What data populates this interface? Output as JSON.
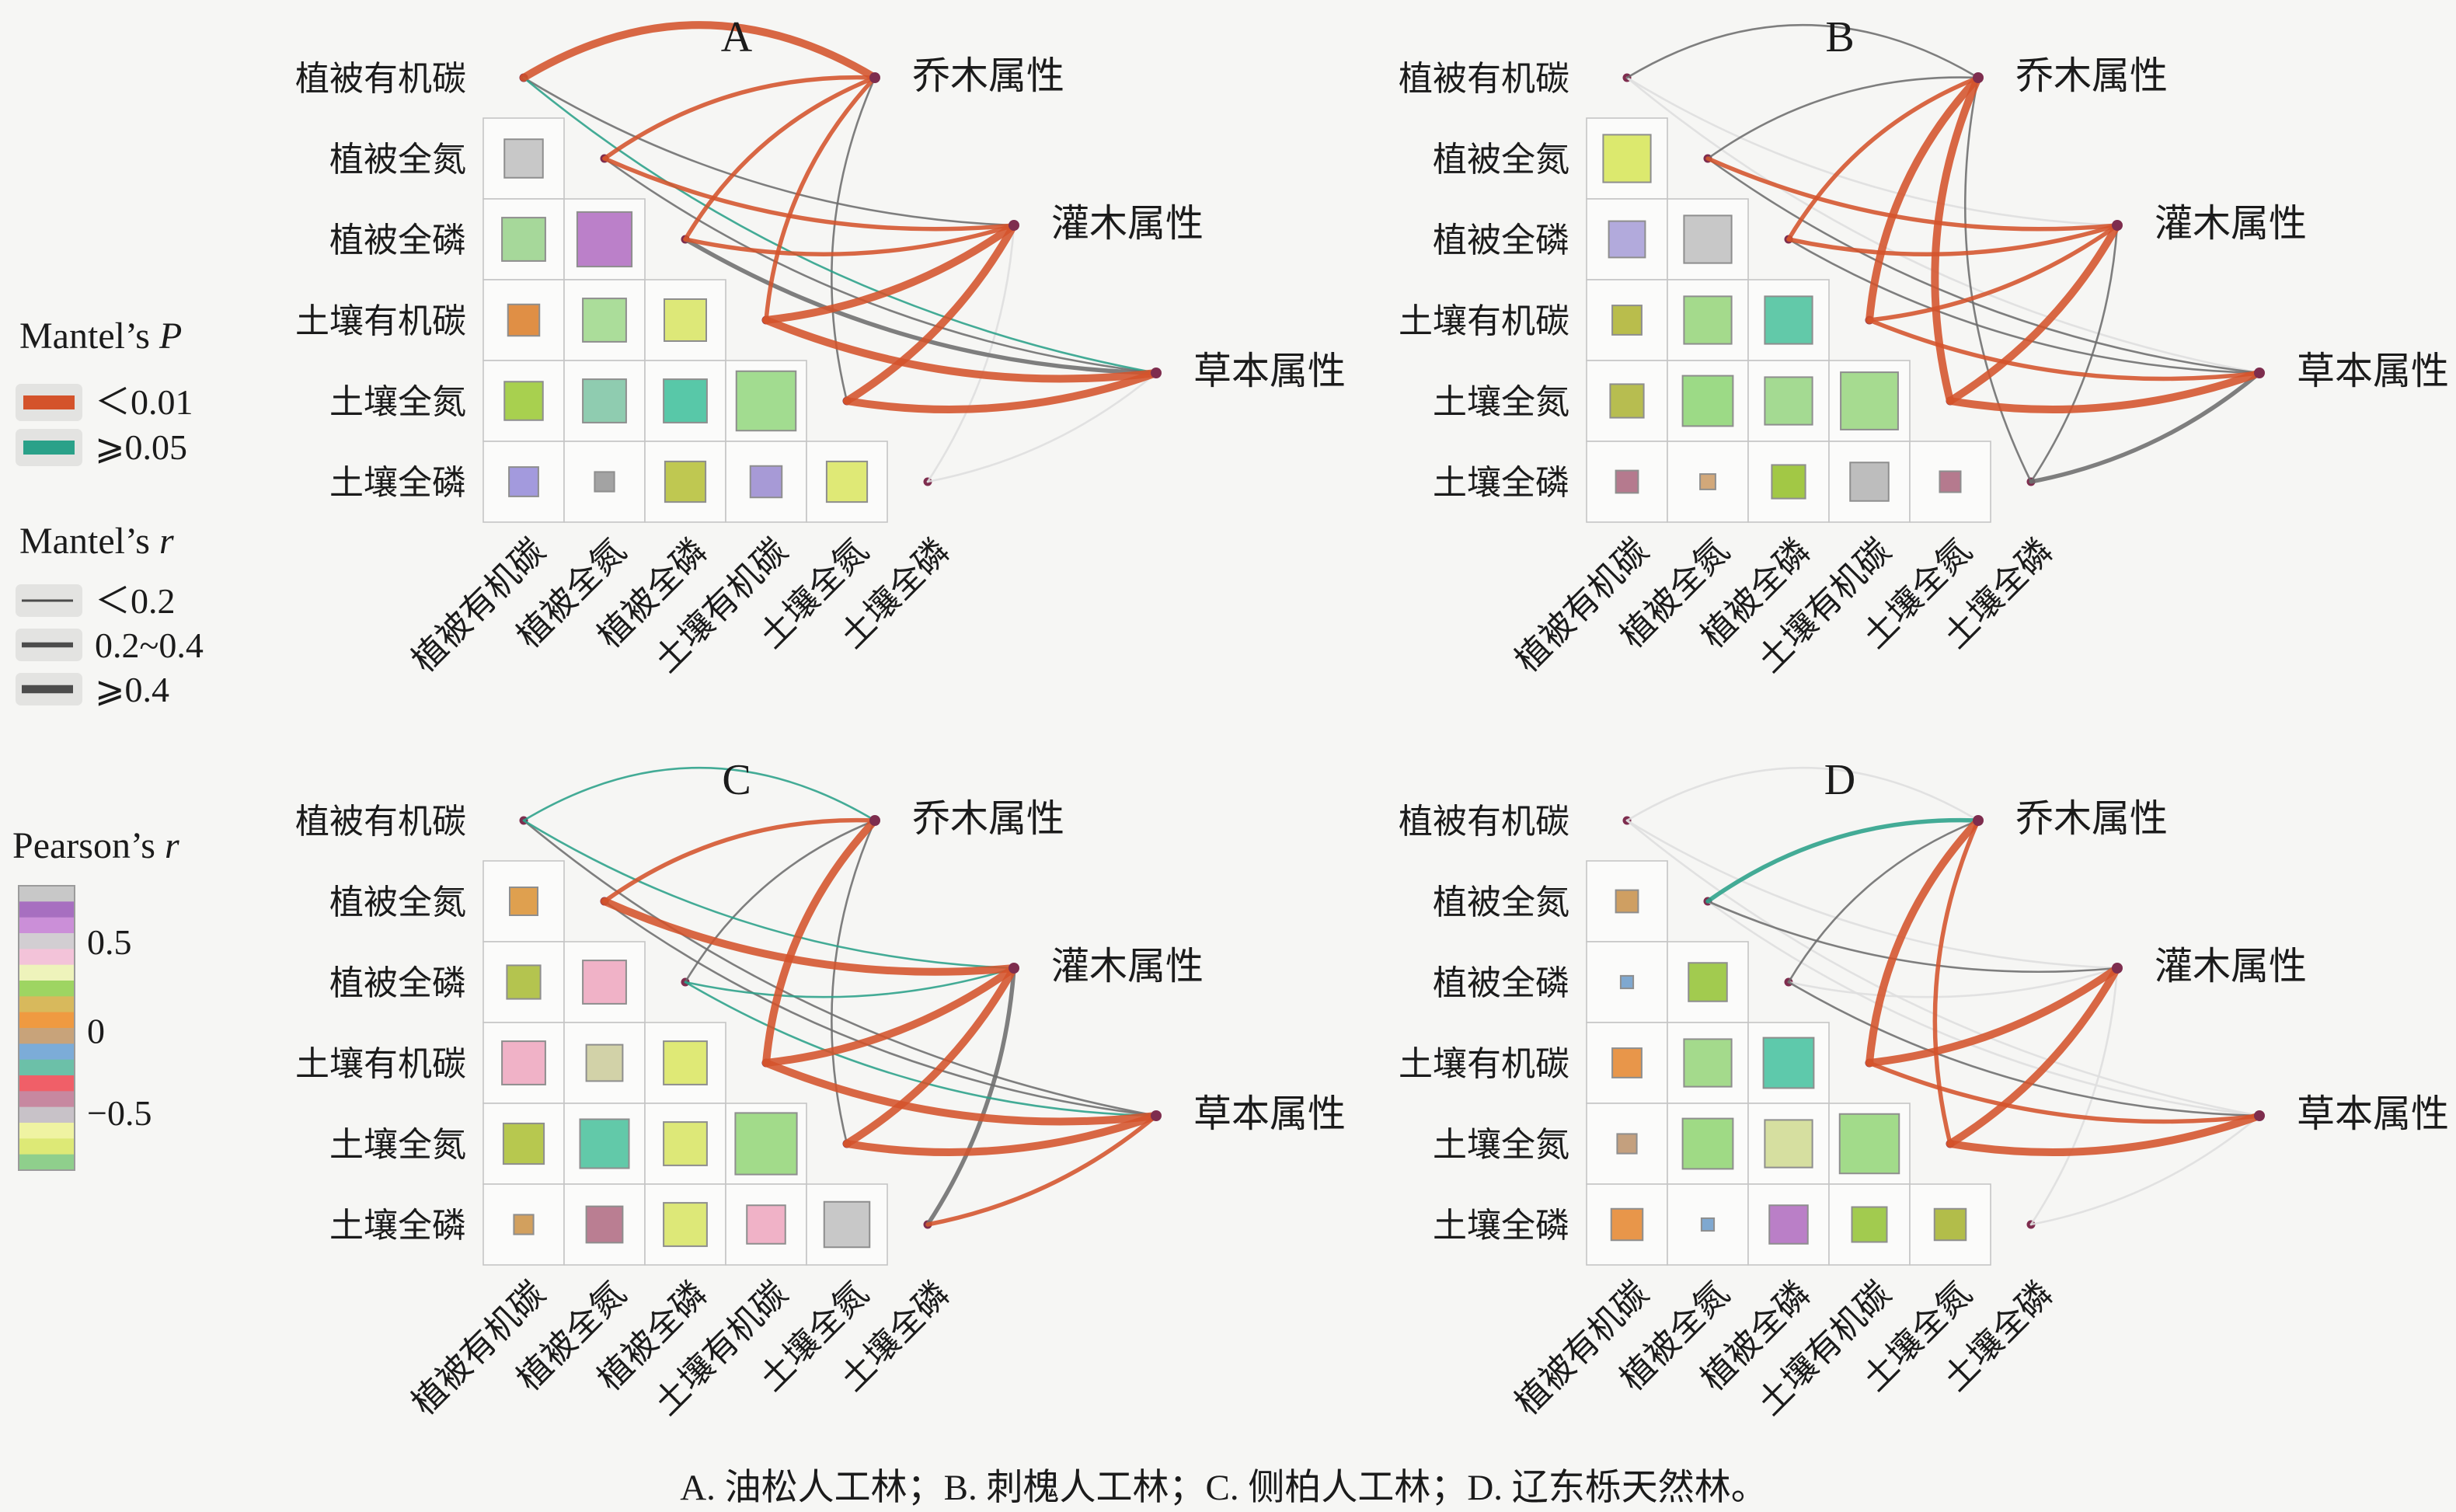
{
  "caption": "A. 油松人工林；B. 刺槐人工林；C. 侧柏人工林；D. 辽东栎天然林。",
  "variables": [
    "植被有机碳",
    "植被全氮",
    "植被全磷",
    "土壤有机碳",
    "土壤全氮",
    "土壤全磷"
  ],
  "attributes": [
    "乔木属性",
    "灌木属性",
    "草本属性"
  ],
  "legend": {
    "mantel_p": {
      "title_text": "Mantel’s ",
      "title_var": "P",
      "items": [
        {
          "label": "＜0.01",
          "color": "#d4532b"
        },
        {
          "label": "⩾0.05",
          "color": "#2aa189"
        }
      ]
    },
    "mantel_r": {
      "title_text": "Mantel’s ",
      "title_var": "r",
      "items": [
        {
          "label": "＜0.2",
          "width": 3
        },
        {
          "label": "0.2~0.4",
          "width": 6.5
        },
        {
          "label": "⩾0.4",
          "width": 10.5
        }
      ]
    },
    "pearson": {
      "title_text": "Pearson’s ",
      "title_var": "r",
      "colors": [
        "#c8c8c8",
        "#a76fc0",
        "#cb8fd8",
        "#d2ced2",
        "#f3c3d9",
        "#eef3bb",
        "#9ed562",
        "#d8b95c",
        "#ef9a41",
        "#c8a37a",
        "#7cacd8",
        "#6cc0a8",
        "#f05f68",
        "#c788a0",
        "#c8c2c8",
        "#eff3a2",
        "#dde976",
        "#8fcf8c"
      ],
      "ticks": [
        {
          "label": "0.5",
          "t": 0.2
        },
        {
          "label": "0",
          "t": 0.512
        },
        {
          "label": "−0.5",
          "t": 0.8
        }
      ]
    }
  },
  "chart_data": {
    "type": "multi-panel mantel correlation (lower-triangle heatmap + network)",
    "edge_colors": {
      "lt001": "#d4532b",
      "ge005": "#2aa189",
      "mid": "#6d6d6d",
      "faint": "#dedede"
    },
    "edge_widths": {
      "thin": 2.6,
      "med": 5.5,
      "thick": 10
    },
    "panels": [
      {
        "id": "A",
        "title": "A",
        "subtitle": "油松人工林",
        "origin": [
          0,
          0
        ],
        "cells": [
          [
            {
              "s": 0.55,
              "c": "#c8c8c8"
            }
          ],
          [
            {
              "s": 0.62,
              "c": "#a6d89a"
            },
            {
              "s": 0.78,
              "c": "#bb80c9"
            }
          ],
          [
            {
              "s": 0.45,
              "c": "#e08f45"
            },
            {
              "s": 0.62,
              "c": "#abdd9a"
            },
            {
              "s": 0.6,
              "c": "#dde878"
            }
          ],
          [
            {
              "s": 0.55,
              "c": "#a8d04f"
            },
            {
              "s": 0.62,
              "c": "#8fccb0"
            },
            {
              "s": 0.62,
              "c": "#58c8a8"
            },
            {
              "s": 0.85,
              "c": "#a2dc90"
            }
          ],
          [
            {
              "s": 0.42,
              "c": "#a39add"
            },
            {
              "s": 0.28,
              "c": "#a3a3a3"
            },
            {
              "s": 0.58,
              "c": "#bfc851"
            },
            {
              "s": 0.45,
              "c": "#a79ad6"
            },
            {
              "s": 0.58,
              "c": "#dfe976"
            }
          ]
        ],
        "edges": [
          {
            "from": 0,
            "to": 0,
            "p": "lt001",
            "w": "thick"
          },
          {
            "from": 0,
            "to": 1,
            "p": "mid",
            "w": "thin"
          },
          {
            "from": 0,
            "to": 2,
            "p": "ge005",
            "w": "thin"
          },
          {
            "from": 1,
            "to": 0,
            "p": "lt001",
            "w": "med"
          },
          {
            "from": 1,
            "to": 1,
            "p": "lt001",
            "w": "med"
          },
          {
            "from": 1,
            "to": 2,
            "p": "mid",
            "w": "thin"
          },
          {
            "from": 2,
            "to": 0,
            "p": "lt001",
            "w": "med"
          },
          {
            "from": 2,
            "to": 1,
            "p": "lt001",
            "w": "med"
          },
          {
            "from": 2,
            "to": 2,
            "p": "mid",
            "w": "med"
          },
          {
            "from": 3,
            "to": 0,
            "p": "lt001",
            "w": "med"
          },
          {
            "from": 3,
            "to": 1,
            "p": "lt001",
            "w": "thick"
          },
          {
            "from": 3,
            "to": 2,
            "p": "lt001",
            "w": "thick"
          },
          {
            "from": 4,
            "to": 0,
            "p": "mid",
            "w": "thin"
          },
          {
            "from": 4,
            "to": 1,
            "p": "lt001",
            "w": "thick"
          },
          {
            "from": 4,
            "to": 2,
            "p": "lt001",
            "w": "thick"
          },
          {
            "from": 5,
            "to": 1,
            "p": "faint",
            "w": "thin"
          },
          {
            "from": 5,
            "to": 2,
            "p": "faint",
            "w": "thin"
          }
        ]
      },
      {
        "id": "B",
        "title": "B",
        "subtitle": "刺槐人工林",
        "origin": [
          1420,
          0
        ],
        "cells": [
          [
            {
              "s": 0.68,
              "c": "#dce96e"
            }
          ],
          [
            {
              "s": 0.52,
              "c": "#b2aadc"
            },
            {
              "s": 0.68,
              "c": "#c8c8c8"
            }
          ],
          [
            {
              "s": 0.42,
              "c": "#b9bd4c"
            },
            {
              "s": 0.68,
              "c": "#a4da8c"
            },
            {
              "s": 0.68,
              "c": "#62c9a9"
            }
          ],
          [
            {
              "s": 0.48,
              "c": "#b7bd50"
            },
            {
              "s": 0.72,
              "c": "#9cda86"
            },
            {
              "s": 0.68,
              "c": "#a4da92"
            },
            {
              "s": 0.82,
              "c": "#a6db90"
            }
          ],
          [
            {
              "s": 0.32,
              "c": "#b57a8e"
            },
            {
              "s": 0.22,
              "c": "#d2a87a"
            },
            {
              "s": 0.48,
              "c": "#a2c845"
            },
            {
              "s": 0.55,
              "c": "#bdbdbd"
            },
            {
              "s": 0.3,
              "c": "#b57a8e"
            }
          ]
        ],
        "edges": [
          {
            "from": 0,
            "to": 0,
            "p": "mid",
            "w": "thin"
          },
          {
            "from": 0,
            "to": 1,
            "p": "faint",
            "w": "thin"
          },
          {
            "from": 0,
            "to": 2,
            "p": "faint",
            "w": "thin"
          },
          {
            "from": 1,
            "to": 0,
            "p": "mid",
            "w": "thin"
          },
          {
            "from": 1,
            "to": 1,
            "p": "lt001",
            "w": "med"
          },
          {
            "from": 1,
            "to": 2,
            "p": "mid",
            "w": "thin"
          },
          {
            "from": 2,
            "to": 0,
            "p": "lt001",
            "w": "med"
          },
          {
            "from": 2,
            "to": 1,
            "p": "lt001",
            "w": "med"
          },
          {
            "from": 2,
            "to": 2,
            "p": "mid",
            "w": "thin"
          },
          {
            "from": 3,
            "to": 0,
            "p": "lt001",
            "w": "thick"
          },
          {
            "from": 3,
            "to": 1,
            "p": "lt001",
            "w": "med"
          },
          {
            "from": 3,
            "to": 2,
            "p": "lt001",
            "w": "med"
          },
          {
            "from": 4,
            "to": 0,
            "p": "lt001",
            "w": "thick"
          },
          {
            "from": 4,
            "to": 1,
            "p": "lt001",
            "w": "thick"
          },
          {
            "from": 4,
            "to": 2,
            "p": "lt001",
            "w": "thick"
          },
          {
            "from": 5,
            "to": 0,
            "p": "mid",
            "w": "thin"
          },
          {
            "from": 5,
            "to": 1,
            "p": "mid",
            "w": "thin"
          },
          {
            "from": 5,
            "to": 2,
            "p": "mid",
            "w": "med"
          }
        ]
      },
      {
        "id": "C",
        "title": "C",
        "subtitle": "侧柏人工林",
        "origin": [
          0,
          956
        ],
        "cells": [
          [
            {
              "s": 0.4,
              "c": "#dfa04f"
            }
          ],
          [
            {
              "s": 0.48,
              "c": "#b4c44f"
            },
            {
              "s": 0.62,
              "c": "#f0b2c7"
            }
          ],
          [
            {
              "s": 0.62,
              "c": "#f0b2c7"
            },
            {
              "s": 0.52,
              "c": "#d2d2a8"
            },
            {
              "s": 0.62,
              "c": "#dfe976"
            }
          ],
          [
            {
              "s": 0.58,
              "c": "#b7c84f"
            },
            {
              "s": 0.7,
              "c": "#62c9a9"
            },
            {
              "s": 0.62,
              "c": "#dde878"
            },
            {
              "s": 0.88,
              "c": "#a2db8a"
            }
          ],
          [
            {
              "s": 0.28,
              "c": "#d2a05e"
            },
            {
              "s": 0.52,
              "c": "#ba7e92"
            },
            {
              "s": 0.62,
              "c": "#dde878"
            },
            {
              "s": 0.55,
              "c": "#f0b2c7"
            },
            {
              "s": 0.65,
              "c": "#c8c8c8"
            }
          ]
        ],
        "edges": [
          {
            "from": 0,
            "to": 0,
            "p": "ge005",
            "w": "thin"
          },
          {
            "from": 0,
            "to": 1,
            "p": "ge005",
            "w": "thin"
          },
          {
            "from": 0,
            "to": 2,
            "p": "mid",
            "w": "thin"
          },
          {
            "from": 1,
            "to": 0,
            "p": "lt001",
            "w": "med"
          },
          {
            "from": 1,
            "to": 1,
            "p": "lt001",
            "w": "thick"
          },
          {
            "from": 1,
            "to": 2,
            "p": "mid",
            "w": "thin"
          },
          {
            "from": 2,
            "to": 0,
            "p": "mid",
            "w": "thin"
          },
          {
            "from": 2,
            "to": 1,
            "p": "ge005",
            "w": "thin"
          },
          {
            "from": 2,
            "to": 2,
            "p": "ge005",
            "w": "thin"
          },
          {
            "from": 3,
            "to": 0,
            "p": "lt001",
            "w": "thick"
          },
          {
            "from": 3,
            "to": 1,
            "p": "lt001",
            "w": "thick"
          },
          {
            "from": 3,
            "to": 2,
            "p": "lt001",
            "w": "thick"
          },
          {
            "from": 4,
            "to": 0,
            "p": "mid",
            "w": "thin"
          },
          {
            "from": 4,
            "to": 1,
            "p": "lt001",
            "w": "thick"
          },
          {
            "from": 4,
            "to": 2,
            "p": "lt001",
            "w": "thick"
          },
          {
            "from": 5,
            "to": 1,
            "p": "mid",
            "w": "med"
          },
          {
            "from": 5,
            "to": 2,
            "p": "lt001",
            "w": "med"
          }
        ]
      },
      {
        "id": "D",
        "title": "D",
        "subtitle": "辽东栎天然林",
        "origin": [
          1420,
          956
        ],
        "cells": [
          [
            {
              "s": 0.32,
              "c": "#cf9f62"
            }
          ],
          [
            {
              "s": 0.18,
              "c": "#7fa8d0"
            },
            {
              "s": 0.55,
              "c": "#a2cb4f"
            }
          ],
          [
            {
              "s": 0.42,
              "c": "#e8964a"
            },
            {
              "s": 0.68,
              "c": "#a4da8c"
            },
            {
              "s": 0.72,
              "c": "#5ec9ab"
            }
          ],
          [
            {
              "s": 0.28,
              "c": "#c4a07e"
            },
            {
              "s": 0.72,
              "c": "#9fda85"
            },
            {
              "s": 0.68,
              "c": "#d6dfa0"
            },
            {
              "s": 0.85,
              "c": "#a2db8a"
            }
          ],
          [
            {
              "s": 0.45,
              "c": "#e8964a"
            },
            {
              "s": 0.18,
              "c": "#7fa8d0"
            },
            {
              "s": 0.55,
              "c": "#ba7fc7"
            },
            {
              "s": 0.5,
              "c": "#a2cb4f"
            },
            {
              "s": 0.45,
              "c": "#b2bd4a"
            }
          ]
        ],
        "edges": [
          {
            "from": 0,
            "to": 0,
            "p": "faint",
            "w": "thin"
          },
          {
            "from": 0,
            "to": 1,
            "p": "faint",
            "w": "thin"
          },
          {
            "from": 0,
            "to": 2,
            "p": "faint",
            "w": "thin"
          },
          {
            "from": 1,
            "to": 0,
            "p": "ge005",
            "w": "med"
          },
          {
            "from": 1,
            "to": 1,
            "p": "mid",
            "w": "thin"
          },
          {
            "from": 1,
            "to": 2,
            "p": "faint",
            "w": "thin"
          },
          {
            "from": 2,
            "to": 0,
            "p": "mid",
            "w": "thin"
          },
          {
            "from": 2,
            "to": 1,
            "p": "faint",
            "w": "thin"
          },
          {
            "from": 2,
            "to": 2,
            "p": "mid",
            "w": "thin"
          },
          {
            "from": 3,
            "to": 0,
            "p": "lt001",
            "w": "thick"
          },
          {
            "from": 3,
            "to": 1,
            "p": "lt001",
            "w": "thick"
          },
          {
            "from": 3,
            "to": 2,
            "p": "lt001",
            "w": "med"
          },
          {
            "from": 4,
            "to": 0,
            "p": "lt001",
            "w": "med"
          },
          {
            "from": 4,
            "to": 1,
            "p": "lt001",
            "w": "thick"
          },
          {
            "from": 4,
            "to": 2,
            "p": "lt001",
            "w": "thick"
          },
          {
            "from": 5,
            "to": 1,
            "p": "faint",
            "w": "thin"
          },
          {
            "from": 5,
            "to": 2,
            "p": "faint",
            "w": "thin"
          }
        ]
      }
    ]
  }
}
